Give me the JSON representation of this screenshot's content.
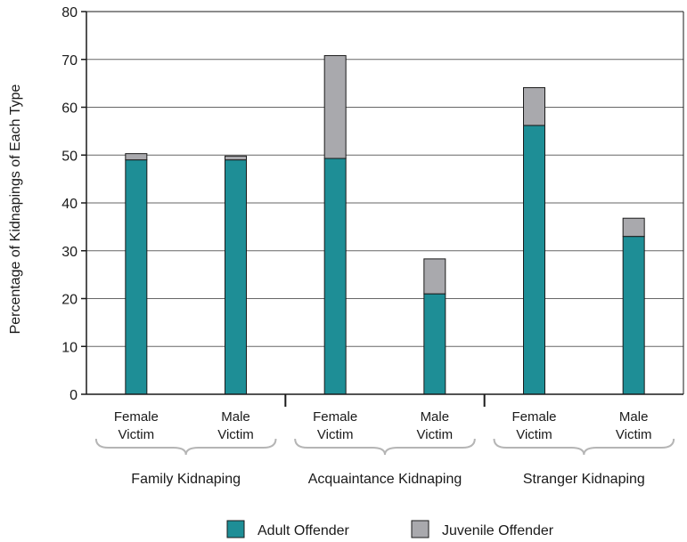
{
  "chart_data": {
    "type": "bar",
    "stacked": true,
    "ylabel": "Percentage of Kidnapings of Each Type",
    "ylim": [
      0,
      80
    ],
    "yticks": [
      0,
      10,
      20,
      30,
      40,
      50,
      60,
      70,
      80
    ],
    "grid": true,
    "legend_position": "bottom",
    "groups": [
      {
        "label": "Family Kidnaping",
        "categories": [
          [
            "Female",
            "Victim"
          ],
          [
            "Male",
            "Victim"
          ]
        ]
      },
      {
        "label": "Acquaintance Kidnaping",
        "categories": [
          [
            "Female",
            "Victim"
          ],
          [
            "Male",
            "Victim"
          ]
        ]
      },
      {
        "label": "Stranger Kidnaping",
        "categories": [
          [
            "Female",
            "Victim"
          ],
          [
            "Male",
            "Victim"
          ]
        ]
      }
    ],
    "series": [
      {
        "name": "Adult Offender",
        "color": "#1e8e96",
        "values": [
          49,
          49,
          49.3,
          21,
          56.2,
          33
        ]
      },
      {
        "name": "Juvenile Offender",
        "color": "#a9a9ad",
        "values": [
          1.3,
          0.8,
          21.5,
          7.3,
          7.9,
          3.8
        ]
      }
    ]
  }
}
